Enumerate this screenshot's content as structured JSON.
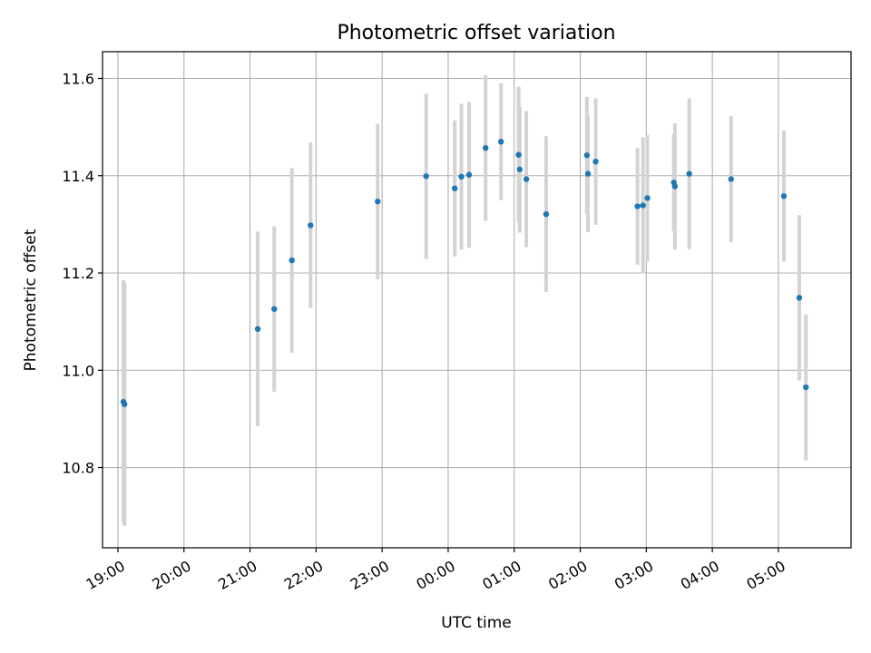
{
  "chart_data": {
    "type": "scatter",
    "title": "Photometric offset variation",
    "xlabel": "UTC time",
    "ylabel": "Photometric offset",
    "x_unit": "UTC time (HH:MM)",
    "x_axis_day_boundary": "x values from 00:00 onward fall on the next day",
    "xlim": [
      "18:46",
      "06:06"
    ],
    "ylim": [
      10.635,
      11.655
    ],
    "x_ticks": [
      "19:00",
      "20:00",
      "21:00",
      "22:00",
      "23:00",
      "00:00",
      "01:00",
      "02:00",
      "03:00",
      "04:00",
      "05:00"
    ],
    "y_ticks": [
      10.8,
      11.0,
      11.2,
      11.4,
      11.6
    ],
    "y_tick_labels": [
      "10.8",
      "11.0",
      "11.2",
      "11.4",
      "11.6"
    ],
    "grid": true,
    "point_color": "#1f77b4",
    "errorbar_color": "#d3d3d3",
    "series": [
      {
        "points": [
          {
            "x": "19:05",
            "y": 10.935,
            "err": 0.25
          },
          {
            "x": "19:06",
            "y": 10.93,
            "err": 0.25
          },
          {
            "x": "21:07",
            "y": 11.085,
            "err": 0.2
          },
          {
            "x": "21:22",
            "y": 11.126,
            "err": 0.17
          },
          {
            "x": "21:38",
            "y": 11.226,
            "err": 0.19
          },
          {
            "x": "21:55",
            "y": 11.298,
            "err": 0.17
          },
          {
            "x": "22:56",
            "y": 11.347,
            "err": 0.16
          },
          {
            "x": "23:40",
            "y": 11.399,
            "err": 0.17
          },
          {
            "x": "00:06",
            "y": 11.374,
            "err": 0.14
          },
          {
            "x": "00:12",
            "y": 11.398,
            "err": 0.15
          },
          {
            "x": "00:19",
            "y": 11.402,
            "err": 0.15
          },
          {
            "x": "00:34",
            "y": 11.457,
            "err": 0.15
          },
          {
            "x": "00:48",
            "y": 11.47,
            "err": 0.12
          },
          {
            "x": "01:04",
            "y": 11.443,
            "err": 0.14
          },
          {
            "x": "01:05",
            "y": 11.413,
            "err": 0.13
          },
          {
            "x": "01:11",
            "y": 11.393,
            "err": 0.14
          },
          {
            "x": "01:29",
            "y": 11.321,
            "err": 0.16
          },
          {
            "x": "02:06",
            "y": 11.442,
            "err": 0.12
          },
          {
            "x": "02:07",
            "y": 11.404,
            "err": 0.12
          },
          {
            "x": "02:14",
            "y": 11.429,
            "err": 0.13
          },
          {
            "x": "02:52",
            "y": 11.337,
            "err": 0.12
          },
          {
            "x": "02:57",
            "y": 11.339,
            "err": 0.14
          },
          {
            "x": "03:01",
            "y": 11.354,
            "err": 0.13
          },
          {
            "x": "03:25",
            "y": 11.386,
            "err": 0.1
          },
          {
            "x": "03:26",
            "y": 11.378,
            "err": 0.13
          },
          {
            "x": "03:39",
            "y": 11.404,
            "err": 0.155
          },
          {
            "x": "04:17",
            "y": 11.393,
            "err": 0.13
          },
          {
            "x": "05:05",
            "y": 11.358,
            "err": 0.135
          },
          {
            "x": "05:19",
            "y": 11.149,
            "err": 0.17
          },
          {
            "x": "05:25",
            "y": 10.965,
            "err": 0.15
          }
        ]
      }
    ]
  }
}
